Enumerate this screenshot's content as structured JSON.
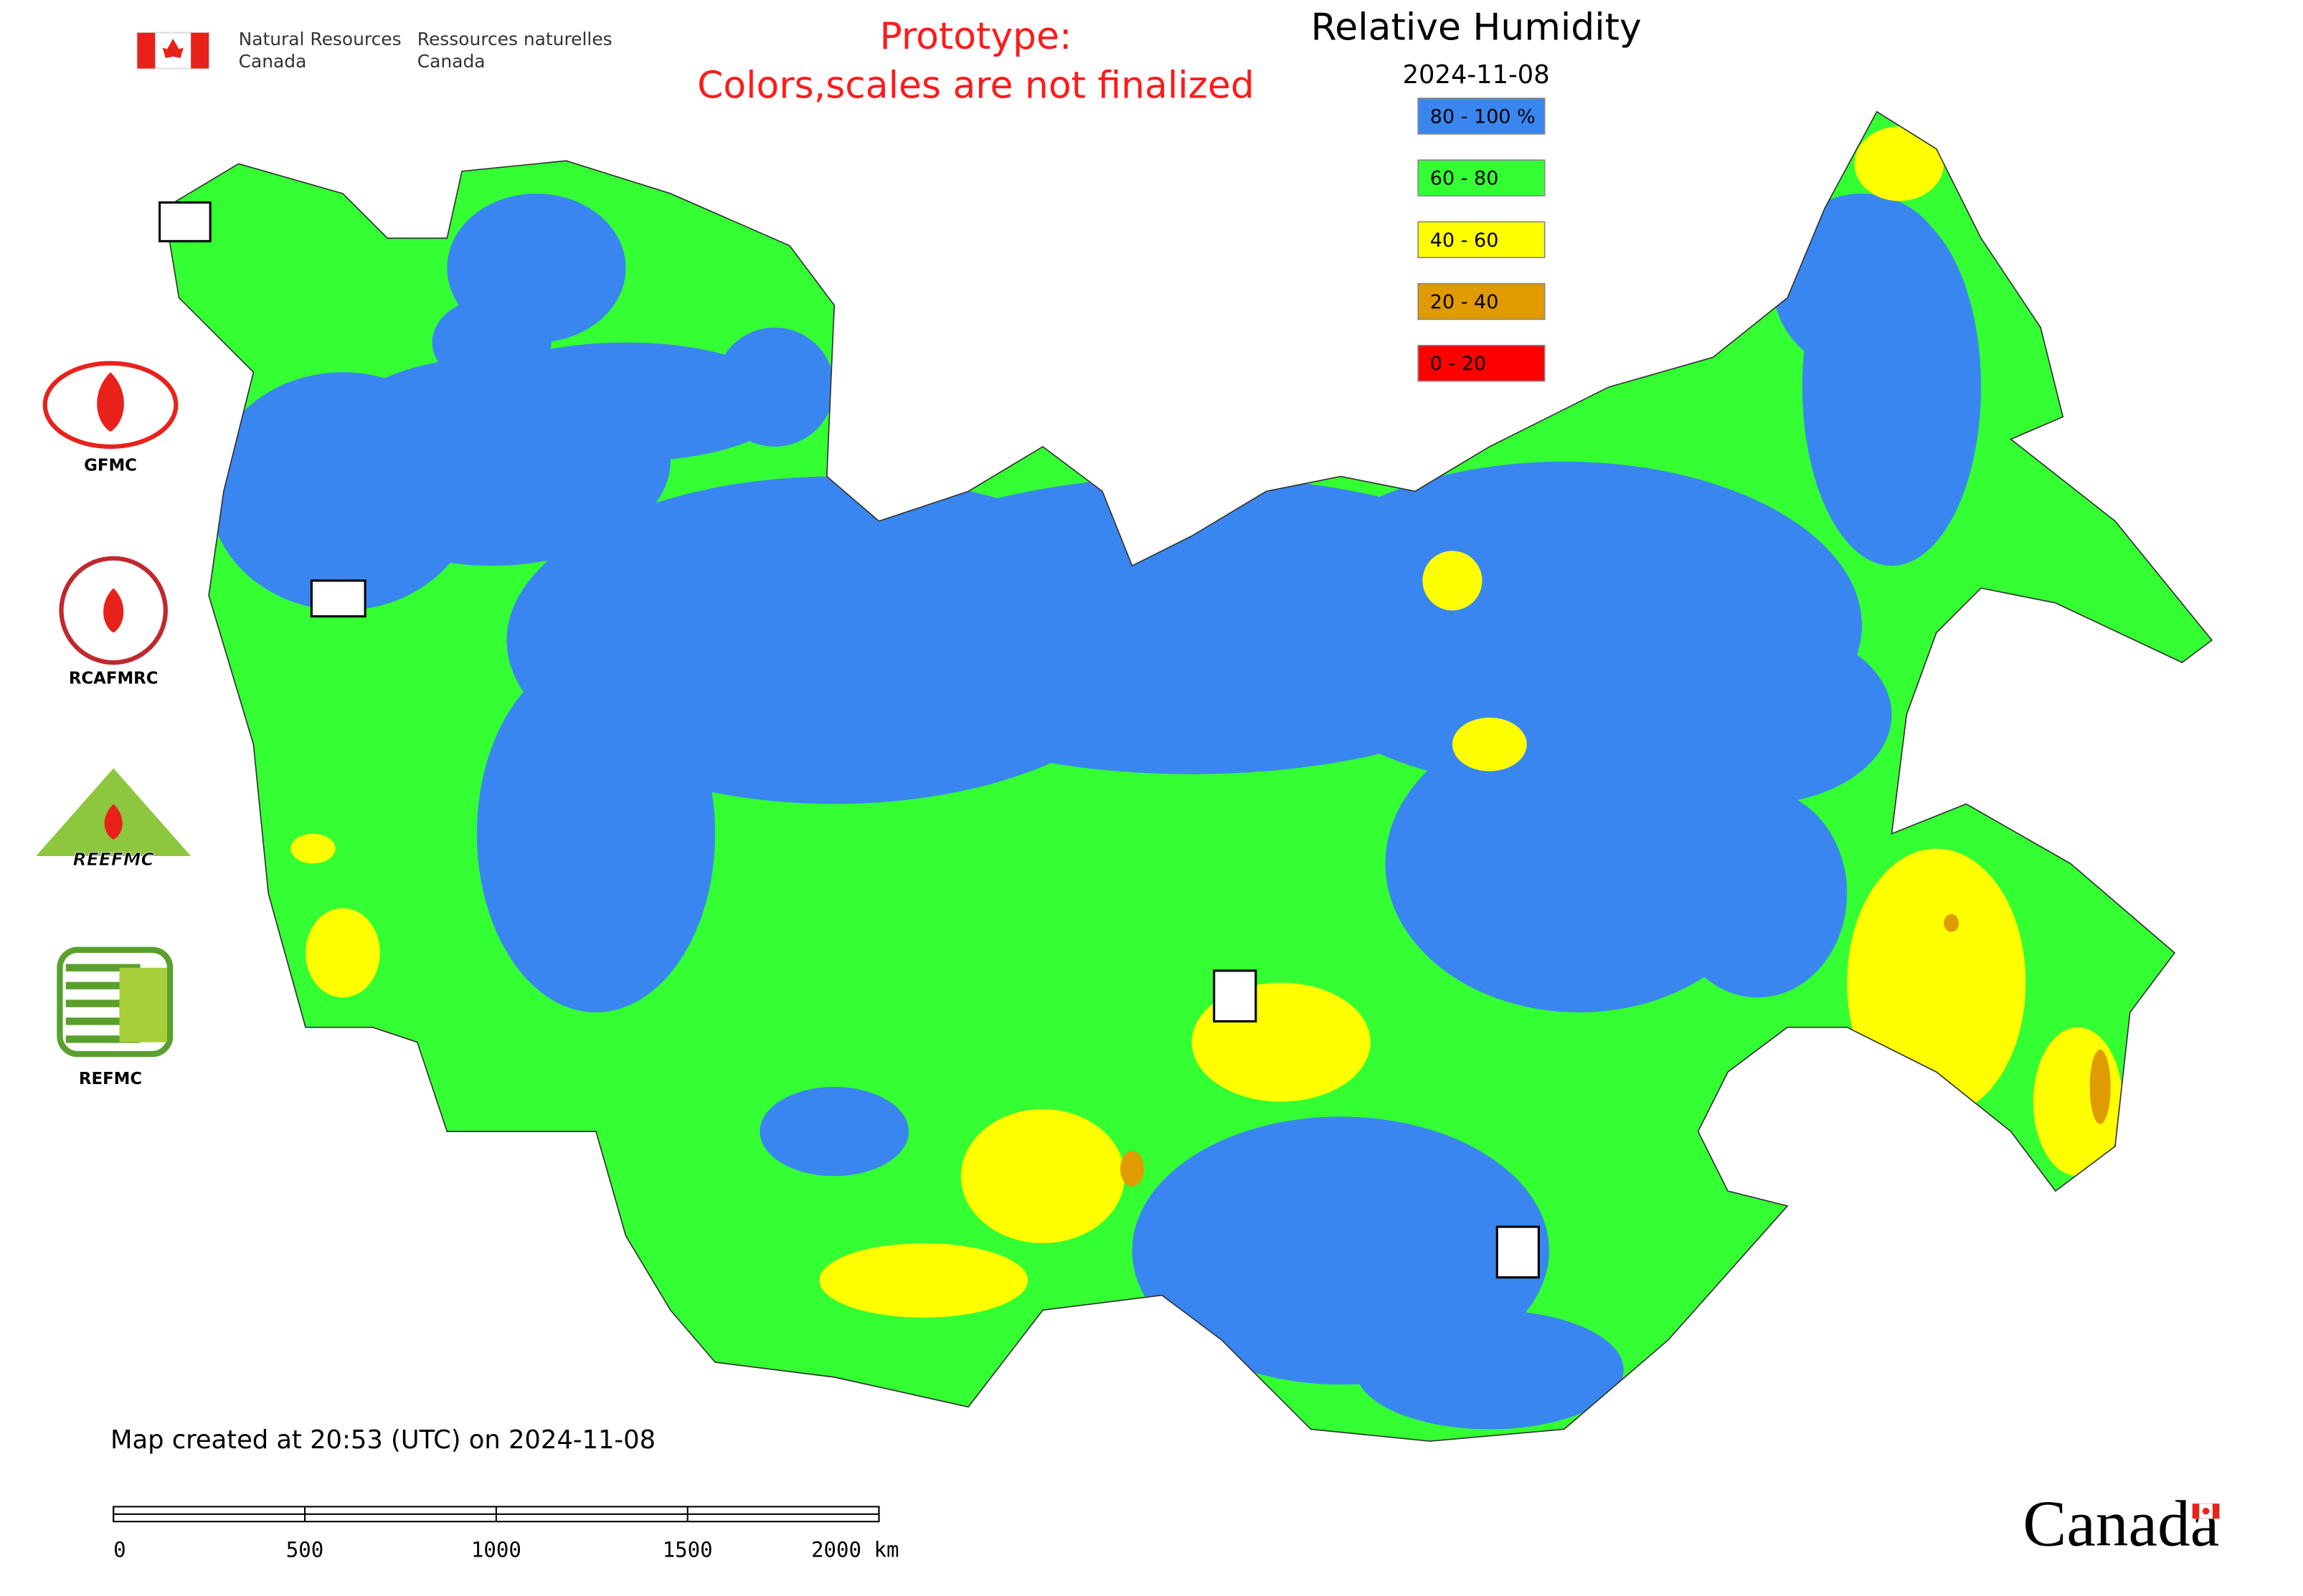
{
  "header": {
    "en": [
      "Natural Resources",
      "Canada"
    ],
    "fr": [
      "Ressources naturelles",
      "Canada"
    ]
  },
  "notice": [
    "Prototype:",
    "Colors,scales are not finalized"
  ],
  "title": "Relative Humidity",
  "date": "2024-11-08",
  "legend": [
    {
      "label": "80 - 100 %",
      "color": "#3a86f0"
    },
    {
      "label": "60 - 80",
      "color": "#33ff33"
    },
    {
      "label": "40 - 60",
      "color": "#ffff00"
    },
    {
      "label": "20 - 40",
      "color": "#e09b00"
    },
    {
      "label": "0 - 20",
      "color": "#ff0000"
    }
  ],
  "logos": [
    "GFMC",
    "RCAFMRC",
    "REEFMC",
    "REFMC"
  ],
  "footer": "Map created at 20:53 (UTC) on 2024-11-08",
  "scale_bar": {
    "ticks": [
      0,
      500,
      1000,
      1500,
      {
        "value": 2000,
        "label": "2000 km"
      }
    ]
  },
  "wordmark": "Canada"
}
